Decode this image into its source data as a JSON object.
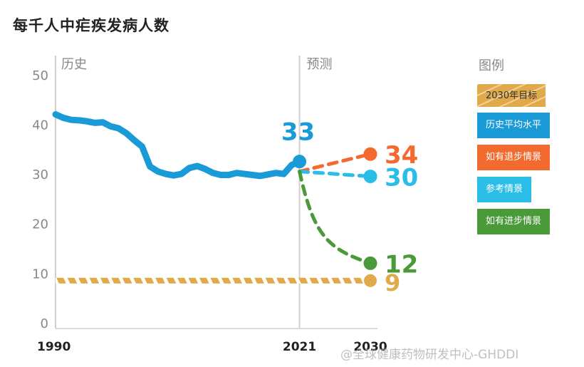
{
  "title": "每千人中疟疾发病人数",
  "chart_data": {
    "type": "line",
    "ylim": [
      0,
      55
    ],
    "yticks": [
      0,
      10,
      20,
      30,
      40,
      50
    ],
    "xticks": [
      1990,
      2021,
      2030
    ],
    "period_labels": {
      "history": "历史",
      "forecast": "预测"
    },
    "legend_title": "图例",
    "series": [
      {
        "name": "历史平均水平",
        "color": "#1a9ad7",
        "style": "solid",
        "points": [
          [
            1990,
            42
          ],
          [
            1991,
            41.3
          ],
          [
            1992,
            40.9
          ],
          [
            1993,
            40.8
          ],
          [
            1994,
            40.6
          ],
          [
            1995,
            40.3
          ],
          [
            1996,
            40.4
          ],
          [
            1997,
            39.6
          ],
          [
            1998,
            39.2
          ],
          [
            1999,
            38.2
          ],
          [
            2000,
            36.8
          ],
          [
            2001,
            35.5
          ],
          [
            2002,
            31.5
          ],
          [
            2003,
            30.5
          ],
          [
            2004,
            30.0
          ],
          [
            2005,
            29.7
          ],
          [
            2006,
            30.0
          ],
          [
            2007,
            31.2
          ],
          [
            2008,
            31.6
          ],
          [
            2009,
            31.0
          ],
          [
            2010,
            30.2
          ],
          [
            2011,
            29.8
          ],
          [
            2012,
            29.8
          ],
          [
            2013,
            30.2
          ],
          [
            2014,
            30.0
          ],
          [
            2015,
            29.8
          ],
          [
            2016,
            29.6
          ],
          [
            2017,
            29.9
          ],
          [
            2018,
            30.2
          ],
          [
            2019,
            30.0
          ],
          [
            2020,
            31.8
          ],
          [
            2021,
            32.5
          ]
        ],
        "end_label": "33"
      },
      {
        "name": "如有退步情景",
        "color": "#f26a2e",
        "style": "dashed",
        "points": [
          [
            2021,
            30.5
          ],
          [
            2030,
            34
          ]
        ],
        "end_label": "34"
      },
      {
        "name": "参考情景",
        "color": "#29bde8",
        "style": "dashed",
        "points": [
          [
            2021,
            30.5
          ],
          [
            2030,
            29.5
          ]
        ],
        "end_label": "30"
      },
      {
        "name": "如有进步情景",
        "color": "#4a9a3a",
        "style": "dashed",
        "points": [
          [
            2021,
            30.5
          ],
          [
            2030,
            12
          ]
        ],
        "end_label": "12"
      },
      {
        "name": "2030年目标",
        "color": "#e0a94a",
        "style": "hatched",
        "points": [
          [
            1990,
            8.5
          ],
          [
            2030,
            8.5
          ]
        ],
        "end_label": "9"
      }
    ]
  },
  "legend": [
    {
      "label": "2030年目标",
      "color": "#e0a94a",
      "text_color": "#333"
    },
    {
      "label": "历史平均水平",
      "color": "#1a9ad7",
      "text_color": "#fff"
    },
    {
      "label": "如有退步情景",
      "color": "#f26a2e",
      "text_color": "#fff"
    },
    {
      "label": "参考情景",
      "color": "#29bde8",
      "text_color": "#fff"
    },
    {
      "label": "如有进步情景",
      "color": "#4a9a3a",
      "text_color": "#fff"
    }
  ],
  "watermark": "@全球健康药物研发中心-GHDDI"
}
